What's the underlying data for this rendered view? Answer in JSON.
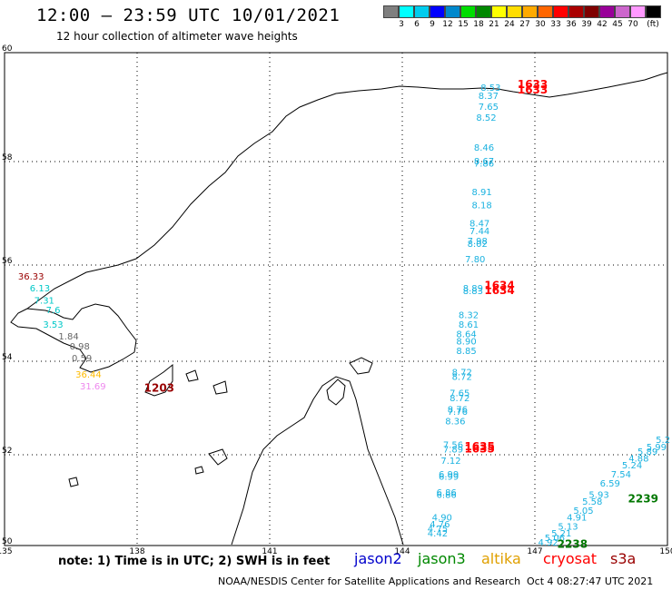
{
  "header": {
    "title": "12:00 — 23:59 UTC 10/01/2021",
    "subtitle": "12 hour collection of altimeter wave heights"
  },
  "legend": {
    "unit": "(ft)",
    "colors": [
      "#7f7f7f",
      "#00ffff",
      "#00ccee",
      "#0000ff",
      "#0088cc",
      "#00dd00",
      "#008800",
      "#ffff00",
      "#ffdd00",
      "#ffaa00",
      "#ff6600",
      "#ff0000",
      "#aa0000",
      "#7f0000",
      "#990099",
      "#cc66cc",
      "#ff99ff",
      "#000000"
    ],
    "labels": [
      "3",
      "6",
      "9",
      "12",
      "15",
      "18",
      "21",
      "24",
      "27",
      "30",
      "33",
      "36",
      "39",
      "42",
      "45",
      "70"
    ]
  },
  "map": {
    "lat_labels": [
      "60",
      "58",
      "56",
      "54",
      "52",
      "50"
    ],
    "lon_labels": [
      "135",
      "138",
      "141",
      "144",
      "147",
      "150"
    ],
    "lat_values": [
      60,
      58,
      56,
      54,
      52,
      50
    ],
    "lon_values": [
      135,
      138,
      141,
      144,
      147,
      150
    ],
    "colors": {
      "jason3": "#1ab2e0",
      "cryosat": "#ff0000",
      "s3a": "#990000",
      "jason2": "#0000cc",
      "altika": "#e0a000",
      "cyan": "#00c8c8",
      "grey": "#666666",
      "gold": "#ffbb00",
      "pink": "#ee88ee",
      "green": "#007700",
      "land": "#000000"
    },
    "tracks": [
      {
        "name": "jason3-track-east",
        "color": "jason3",
        "points": [
          [
            "8.53",
            146.0,
            59.3
          ],
          [
            "8.37",
            145.95,
            59.15
          ],
          [
            "7.65",
            145.95,
            58.95
          ],
          [
            "8.52",
            145.9,
            58.75
          ],
          [
            "8.46",
            145.85,
            58.2
          ],
          [
            "8.67",
            145.85,
            57.95
          ],
          [
            "7.86",
            145.85,
            57.9
          ],
          [
            "8.91",
            145.8,
            57.35
          ],
          [
            "8.18",
            145.8,
            57.1
          ],
          [
            "8.47",
            145.75,
            56.75
          ],
          [
            "7.44",
            145.75,
            56.6
          ],
          [
            "7.98",
            145.7,
            56.4
          ],
          [
            "8.02",
            145.7,
            56.35
          ],
          [
            "7.80",
            145.65,
            56.05
          ],
          [
            "8.89",
            145.6,
            55.45
          ],
          [
            "8.83",
            145.6,
            55.4
          ],
          [
            "8.32",
            145.5,
            54.9
          ],
          [
            "8.61",
            145.5,
            54.7
          ],
          [
            "8.64",
            145.45,
            54.5
          ],
          [
            "8.90",
            145.45,
            54.35
          ],
          [
            "8.85",
            145.45,
            54.15
          ],
          [
            "8.72",
            145.35,
            53.7
          ],
          [
            "8.72",
            145.35,
            53.6
          ],
          [
            "7.65",
            145.3,
            53.25
          ],
          [
            "8.72",
            145.3,
            53.15
          ],
          [
            "8.76",
            145.25,
            52.9
          ],
          [
            "7.76",
            145.25,
            52.85
          ],
          [
            "8.36",
            145.2,
            52.65
          ],
          [
            "7.56",
            145.15,
            52.15
          ],
          [
            "7.89",
            145.15,
            52.05
          ],
          [
            "7.12",
            145.1,
            51.8
          ],
          [
            "6.99",
            145.05,
            51.5
          ],
          [
            "6.99",
            145.05,
            51.45
          ],
          [
            "6.86",
            145.0,
            51.1
          ],
          [
            "6.86",
            145.0,
            51.05
          ],
          [
            "4.90",
            144.9,
            50.55
          ],
          [
            "4.76",
            144.85,
            50.4
          ],
          [
            "4.75",
            144.8,
            50.3
          ],
          [
            "4.42",
            144.8,
            50.2
          ]
        ]
      },
      {
        "name": "jason3-track-southeast",
        "color": "jason3",
        "points": [
          [
            "4.92",
            147.3,
            50.0
          ],
          [
            "5.06",
            147.45,
            50.1
          ],
          [
            "5.21",
            147.6,
            50.2
          ],
          [
            "5.13",
            147.75,
            50.35
          ],
          [
            "4.91",
            147.95,
            50.55
          ],
          [
            "5.05",
            148.1,
            50.7
          ],
          [
            "5.58",
            148.3,
            50.9
          ],
          [
            "5.93",
            148.45,
            51.05
          ],
          [
            "6.59",
            148.7,
            51.3
          ],
          [
            "7.54",
            148.95,
            51.5
          ],
          [
            "5.24",
            149.2,
            51.7
          ],
          [
            "4.88",
            149.35,
            51.85
          ],
          [
            "5.89",
            149.55,
            52.0
          ],
          [
            "5.99",
            149.75,
            52.1
          ],
          [
            "5.2",
            149.9,
            52.25
          ]
        ]
      },
      {
        "name": "western-track",
        "color": "cyan",
        "points": [
          [
            "6.13",
            135.8,
            55.45
          ],
          [
            "7.31",
            135.9,
            55.2
          ],
          [
            "7.6",
            136.1,
            55.0
          ],
          [
            "3.53",
            136.1,
            54.7
          ]
        ]
      }
    ],
    "time_labels": [
      {
        "text": "1633",
        "color": "cryosat",
        "lon": 146.95,
        "lat": 59.35
      },
      {
        "text": "1633",
        "color": "cryosat",
        "lon": 146.95,
        "lat": 59.25
      },
      {
        "text": "1634",
        "color": "cryosat",
        "lon": 146.2,
        "lat": 55.5
      },
      {
        "text": "1634",
        "color": "cryosat",
        "lon": 146.2,
        "lat": 55.4
      },
      {
        "text": "1635",
        "color": "cryosat",
        "lon": 145.75,
        "lat": 52.1
      },
      {
        "text": "1635",
        "color": "cryosat",
        "lon": 145.75,
        "lat": 52.05
      },
      {
        "text": "1203",
        "color": "s3a",
        "lon": 138.5,
        "lat": 53.35
      },
      {
        "text": "2239",
        "color": "green",
        "lon": 149.45,
        "lat": 50.95
      },
      {
        "text": "2238",
        "color": "green",
        "lon": 147.85,
        "lat": 49.95
      }
    ],
    "misc_labels": [
      {
        "text": "36.33",
        "color": "s3a",
        "lon": 135.6,
        "lat": 55.7
      },
      {
        "text": "1.84",
        "color": "grey",
        "lon": 136.45,
        "lat": 54.45
      },
      {
        "text": "0.98",
        "color": "grey",
        "lon": 136.7,
        "lat": 54.25
      },
      {
        "text": "0.59",
        "color": "grey",
        "lon": 136.75,
        "lat": 54.0
      },
      {
        "text": "36.44",
        "color": "gold",
        "lon": 136.9,
        "lat": 53.65
      },
      {
        "text": "31.69",
        "color": "pink",
        "lon": 137.0,
        "lat": 53.4
      }
    ]
  },
  "footer": {
    "note": "note:  1) Time is in UTC;  2) SWH is in feet",
    "jason2": "jason2",
    "jason3": "jason3",
    "altika": "altika",
    "cryosat": "cryosat",
    "s3a": "s3a",
    "credit": "NOAA/NESDIS Center for Satellite Applications and Research",
    "stamp": "Oct  4 08:27:47 UTC 2021"
  }
}
